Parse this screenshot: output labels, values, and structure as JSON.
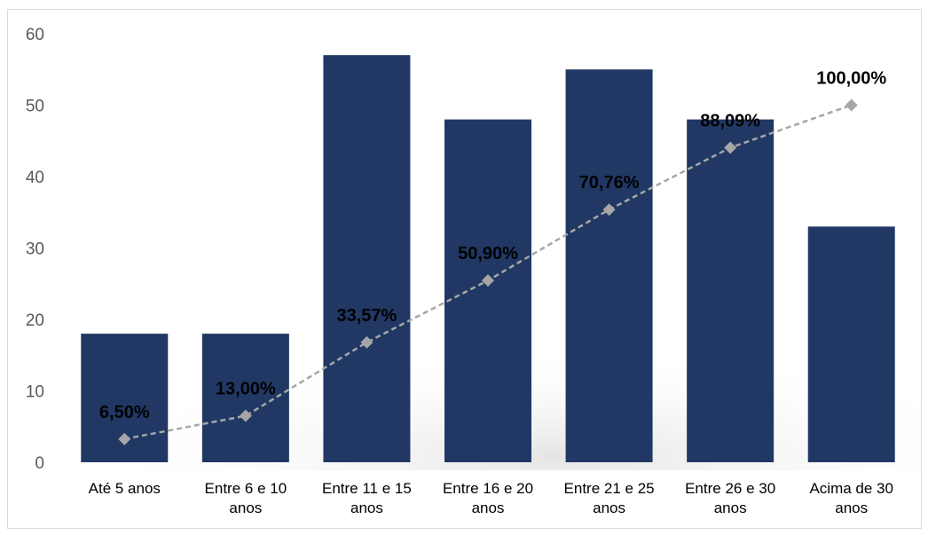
{
  "chart_data": {
    "type": "bar",
    "categories": [
      [
        "Até 5 anos"
      ],
      [
        "Entre 6 e 10",
        "anos"
      ],
      [
        "Entre 11 e 15",
        "anos"
      ],
      [
        "Entre 16 e 20",
        "anos"
      ],
      [
        "Entre 21 e 25",
        "anos"
      ],
      [
        "Entre 26 e 30",
        "anos"
      ],
      [
        "Acima de 30",
        "anos"
      ]
    ],
    "values": [
      18,
      18,
      57,
      48,
      55,
      48,
      33
    ],
    "cumulative_percent": [
      6.5,
      13.0,
      33.57,
      50.9,
      70.76,
      88.09,
      100.0
    ],
    "cumulative_labels": [
      "6,50%",
      "13,00%",
      "33,57%",
      "50,90%",
      "70,76%",
      "88,09%",
      "100,00%"
    ],
    "ylim": [
      0,
      60
    ],
    "yticks": [
      0,
      10,
      20,
      30,
      40,
      50,
      60
    ],
    "line_ylim": [
      0,
      120
    ],
    "grid": false,
    "legend": "none",
    "colors": {
      "bar": "#213864",
      "line": "#a6a6a6",
      "marker": "#a6a6a6",
      "tick_text": "#595959",
      "data_label": "#000000"
    }
  }
}
